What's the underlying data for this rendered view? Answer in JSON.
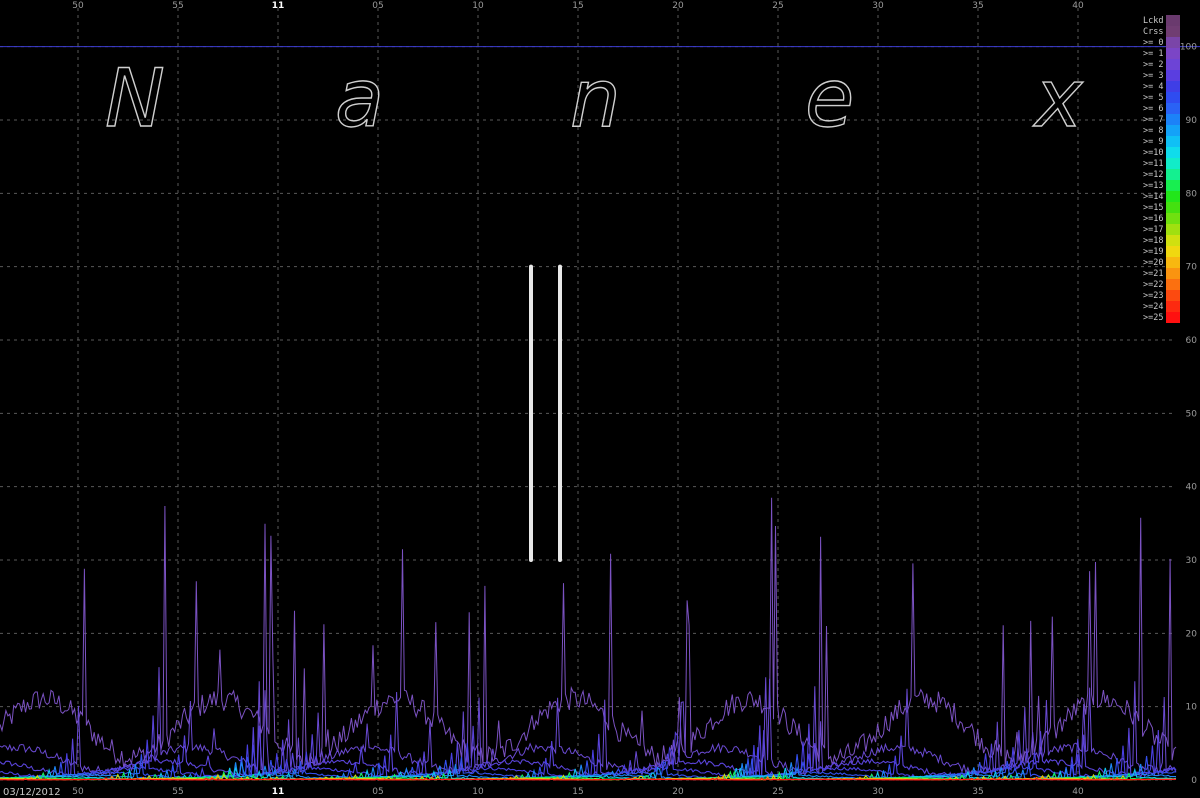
{
  "date_label": "03/12/2012",
  "watermark": [
    "N",
    "a",
    "n",
    "e",
    "x"
  ],
  "chart_data": {
    "type": "line",
    "x_tick_labels": [
      "50",
      "55",
      "11",
      "05",
      "10",
      "15",
      "20",
      "25",
      "30",
      "35",
      "40"
    ],
    "hour_tick_label": "11",
    "y_ticks": [
      0,
      10,
      20,
      30,
      40,
      50,
      60,
      70,
      80,
      90,
      100
    ],
    "ylim": [
      0,
      105
    ],
    "grid": true,
    "legend_position": "right",
    "reference_line_value": 100,
    "legend": [
      "Lckd",
      "Crss",
      ">= 0",
      ">= 1",
      ">= 2",
      ">= 3",
      ">= 4",
      ">= 5",
      ">= 6",
      ">= 7",
      ">= 8",
      ">= 9",
      ">=10",
      ">=11",
      ">=12",
      ">=13",
      ">=14",
      ">=15",
      ">=16",
      ">=17",
      ">=18",
      ">=19",
      ">=20",
      ">=21",
      ">=22",
      ">=23",
      ">=24",
      ">=25"
    ],
    "legend_colors": [
      "#6a3a6e",
      "#703d72",
      "#7a45a8",
      "#7b45c6",
      "#6d44d6",
      "#5a3ee0",
      "#3f3ee6",
      "#2f4cf0",
      "#2a62f5",
      "#1c82f8",
      "#14a2f8",
      "#10c0f5",
      "#10dceb",
      "#12ecc8",
      "#14f090",
      "#18ee50",
      "#22e61a",
      "#44e010",
      "#70e010",
      "#a0e010",
      "#d0e010",
      "#f0d810",
      "#f8b810",
      "#fa9410",
      "#fb7010",
      "#fc4a10",
      "#fd2a10",
      "#ff1010"
    ],
    "series": [
      {
        "color": "#7b52c2",
        "max": 35
      },
      {
        "color": "#6a4ad2",
        "max": 14
      },
      {
        "color": "#5a44da",
        "max": 8
      },
      {
        "color": "#4a40e2",
        "max": 5
      },
      {
        "color": "#3450ee",
        "max": 3.2
      },
      {
        "color": "#1e86f6",
        "max": 2.2
      },
      {
        "color": "#12c6ee",
        "max": 1.5
      },
      {
        "color": "#18ee60",
        "max": 1.0
      },
      {
        "color": "#c8e010",
        "max": 0.7
      },
      {
        "color": "#fa9010",
        "max": 0.45
      },
      {
        "color": "#ff1818",
        "max": 0.25
      }
    ],
    "vertical_markers": [
      "marker-1",
      "marker-2"
    ]
  }
}
